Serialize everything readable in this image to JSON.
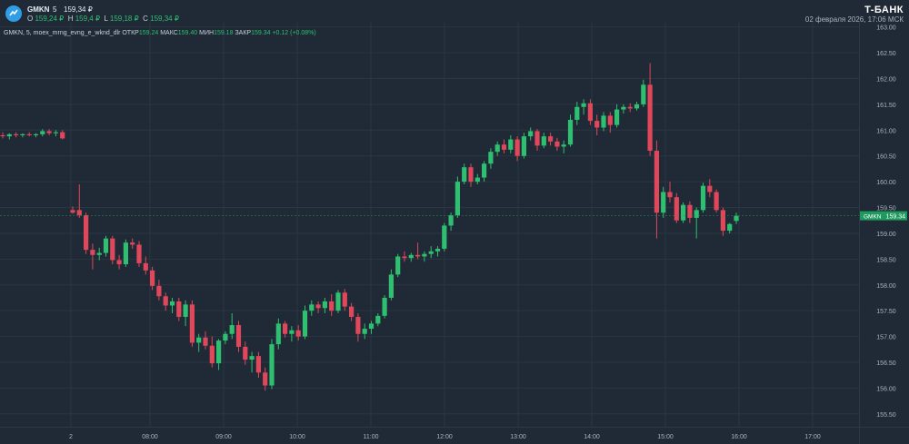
{
  "header": {
    "symbol": "GMKN",
    "timeframe": "5",
    "last_price": "159,34 ₽",
    "ohlc": {
      "o_label": "O",
      "o_value": "159,24 ₽",
      "h_label": "H",
      "h_value": "159,4 ₽",
      "l_label": "L",
      "l_value": "159,18 ₽",
      "c_label": "C",
      "c_value": "159,34 ₽"
    },
    "brand": "T-БАНК",
    "datetime": "02 февраля 2026, 17:06 МСК"
  },
  "indicator": {
    "name": "GMKN, 5, moex_mrng_evng_e_wknd_dlr",
    "open_label": "ОТКР",
    "open_value": "159.24",
    "high_label": "МАКС",
    "high_value": "159.40",
    "low_label": "МИН",
    "low_value": "159.18",
    "close_label": "ЗАКР",
    "close_value": "159.34",
    "change": "+0.12 (+0.08%)"
  },
  "colors": {
    "background": "#1f2a36",
    "grid": "#2a3642",
    "up": "#2fbf71",
    "down": "#e0475b",
    "axis_text": "#aab3bd",
    "price_tag": "#1e9a5e"
  },
  "chart_data": {
    "type": "candlestick",
    "x_tick_labels": [
      "2",
      "08:00",
      "09:00",
      "10:00",
      "11:00",
      "12:00",
      "13:00",
      "14:00",
      "15:00",
      "16:00",
      "17:00"
    ],
    "y_tick_labels": [
      "163.00",
      "162.50",
      "162.00",
      "161.50",
      "161.00",
      "160.50",
      "160.00",
      "159.50",
      "159.00",
      "158.50",
      "158.00",
      "157.50",
      "157.00",
      "156.50",
      "156.00",
      "155.50"
    ],
    "ylim": [
      155.25,
      163.1
    ],
    "current_price": 159.34,
    "current_price_label": "159.34",
    "current_symbol_label": "GMKN",
    "ohlc": [
      [
        160.9,
        160.96,
        160.84,
        160.88
      ],
      [
        160.88,
        160.94,
        160.82,
        160.92
      ],
      [
        160.92,
        160.96,
        160.86,
        160.9
      ],
      [
        160.9,
        160.94,
        160.86,
        160.92
      ],
      [
        160.92,
        160.96,
        160.88,
        160.9
      ],
      [
        160.9,
        160.94,
        160.86,
        160.92
      ],
      [
        160.92,
        161.02,
        160.88,
        160.98
      ],
      [
        160.98,
        161.02,
        160.9,
        160.94
      ],
      [
        160.94,
        161.0,
        160.88,
        160.96
      ],
      [
        160.96,
        161.0,
        160.82,
        160.84
      ],
      [
        159.45,
        159.52,
        159.38,
        159.4
      ],
      [
        159.45,
        159.95,
        159.3,
        159.35
      ],
      [
        159.35,
        159.4,
        158.6,
        158.68
      ],
      [
        158.68,
        158.8,
        158.3,
        158.58
      ],
      [
        158.58,
        158.72,
        158.48,
        158.62
      ],
      [
        158.62,
        158.95,
        158.55,
        158.9
      ],
      [
        158.9,
        158.95,
        158.4,
        158.48
      ],
      [
        158.48,
        158.58,
        158.3,
        158.4
      ],
      [
        158.4,
        158.88,
        158.35,
        158.82
      ],
      [
        158.82,
        158.9,
        158.7,
        158.78
      ],
      [
        158.78,
        158.85,
        158.35,
        158.42
      ],
      [
        158.42,
        158.55,
        158.2,
        158.28
      ],
      [
        158.28,
        158.35,
        157.9,
        157.98
      ],
      [
        157.98,
        158.1,
        157.7,
        157.78
      ],
      [
        157.78,
        157.85,
        157.5,
        157.6
      ],
      [
        157.6,
        157.75,
        157.45,
        157.68
      ],
      [
        157.68,
        157.75,
        157.3,
        157.38
      ],
      [
        157.38,
        157.7,
        157.2,
        157.62
      ],
      [
        157.62,
        157.7,
        156.8,
        156.88
      ],
      [
        156.88,
        157.05,
        156.7,
        156.98
      ],
      [
        156.98,
        157.1,
        156.75,
        156.82
      ],
      [
        156.82,
        157.0,
        156.4,
        156.48
      ],
      [
        156.48,
        156.95,
        156.35,
        156.92
      ],
      [
        156.92,
        157.1,
        156.85,
        157.05
      ],
      [
        157.05,
        157.45,
        156.95,
        157.22
      ],
      [
        157.22,
        157.3,
        156.7,
        156.8
      ],
      [
        156.8,
        156.9,
        156.45,
        156.55
      ],
      [
        156.55,
        156.7,
        156.3,
        156.62
      ],
      [
        156.62,
        156.7,
        156.2,
        156.3
      ],
      [
        156.3,
        156.4,
        155.95,
        156.05
      ],
      [
        156.05,
        156.95,
        155.98,
        156.85
      ],
      [
        156.85,
        157.35,
        156.75,
        157.25
      ],
      [
        157.25,
        157.3,
        156.98,
        157.05
      ],
      [
        157.05,
        157.2,
        156.9,
        157.12
      ],
      [
        157.12,
        157.22,
        156.92,
        157.0
      ],
      [
        157.0,
        157.6,
        156.95,
        157.5
      ],
      [
        157.5,
        157.7,
        157.4,
        157.62
      ],
      [
        157.62,
        157.68,
        157.45,
        157.55
      ],
      [
        157.55,
        157.75,
        157.45,
        157.68
      ],
      [
        157.68,
        157.82,
        157.4,
        157.5
      ],
      [
        157.5,
        157.9,
        157.45,
        157.85
      ],
      [
        157.85,
        157.92,
        157.5,
        157.58
      ],
      [
        157.58,
        157.65,
        157.3,
        157.38
      ],
      [
        157.38,
        157.45,
        156.9,
        157.05
      ],
      [
        157.05,
        157.25,
        156.95,
        157.15
      ],
      [
        157.15,
        157.3,
        157.05,
        157.25
      ],
      [
        157.25,
        157.45,
        157.2,
        157.4
      ],
      [
        157.4,
        157.8,
        157.35,
        157.75
      ],
      [
        157.75,
        158.3,
        157.7,
        158.2
      ],
      [
        158.2,
        158.6,
        158.15,
        158.55
      ],
      [
        158.55,
        158.65,
        158.45,
        158.52
      ],
      [
        158.52,
        158.62,
        158.45,
        158.58
      ],
      [
        158.58,
        158.82,
        158.5,
        158.55
      ],
      [
        158.55,
        158.65,
        158.45,
        158.6
      ],
      [
        158.6,
        158.75,
        158.52,
        158.65
      ],
      [
        158.65,
        158.75,
        158.55,
        158.7
      ],
      [
        158.7,
        159.2,
        158.65,
        159.15
      ],
      [
        159.15,
        159.4,
        159.05,
        159.35
      ],
      [
        159.35,
        160.1,
        159.3,
        160.0
      ],
      [
        160.0,
        160.35,
        159.95,
        160.28
      ],
      [
        160.28,
        160.35,
        159.9,
        160.0
      ],
      [
        160.0,
        160.15,
        159.95,
        160.08
      ],
      [
        160.08,
        160.4,
        160.0,
        160.35
      ],
      [
        160.35,
        160.65,
        160.25,
        160.58
      ],
      [
        160.58,
        160.78,
        160.5,
        160.72
      ],
      [
        160.72,
        160.82,
        160.55,
        160.62
      ],
      [
        160.62,
        160.9,
        160.55,
        160.82
      ],
      [
        160.82,
        160.88,
        160.4,
        160.5
      ],
      [
        160.5,
        160.95,
        160.45,
        160.88
      ],
      [
        160.88,
        161.05,
        160.8,
        160.98
      ],
      [
        160.98,
        161.02,
        160.6,
        160.7
      ],
      [
        160.7,
        160.95,
        160.65,
        160.88
      ],
      [
        160.88,
        160.95,
        160.7,
        160.78
      ],
      [
        160.78,
        160.85,
        160.6,
        160.68
      ],
      [
        160.68,
        160.8,
        160.55,
        160.72
      ],
      [
        160.72,
        161.3,
        160.68,
        161.2
      ],
      [
        161.2,
        161.55,
        161.1,
        161.45
      ],
      [
        161.45,
        161.6,
        161.3,
        161.52
      ],
      [
        161.52,
        161.6,
        161.1,
        161.18
      ],
      [
        161.18,
        161.3,
        160.9,
        161.05
      ],
      [
        161.05,
        161.35,
        160.98,
        161.28
      ],
      [
        161.28,
        161.35,
        160.95,
        161.1
      ],
      [
        161.1,
        161.5,
        161.05,
        161.4
      ],
      [
        161.4,
        161.5,
        161.32,
        161.45
      ],
      [
        161.45,
        161.52,
        161.35,
        161.42
      ],
      [
        161.42,
        161.55,
        161.38,
        161.5
      ],
      [
        161.5,
        161.98,
        161.45,
        161.88
      ],
      [
        161.88,
        162.3,
        160.5,
        160.6
      ],
      [
        160.6,
        160.8,
        158.9,
        159.4
      ],
      [
        159.4,
        159.9,
        159.3,
        159.8
      ],
      [
        159.8,
        160.0,
        159.6,
        159.7
      ],
      [
        159.7,
        159.78,
        159.2,
        159.25
      ],
      [
        159.25,
        159.6,
        159.2,
        159.55
      ],
      [
        159.55,
        159.62,
        159.2,
        159.3
      ],
      [
        159.3,
        159.5,
        158.9,
        159.45
      ],
      [
        159.45,
        159.98,
        159.4,
        159.92
      ],
      [
        159.92,
        160.05,
        159.7,
        159.8
      ],
      [
        159.8,
        159.85,
        159.4,
        159.45
      ],
      [
        159.45,
        159.5,
        158.95,
        159.05
      ],
      [
        159.05,
        159.2,
        159.0,
        159.18
      ],
      [
        159.24,
        159.4,
        159.18,
        159.34
      ]
    ]
  }
}
